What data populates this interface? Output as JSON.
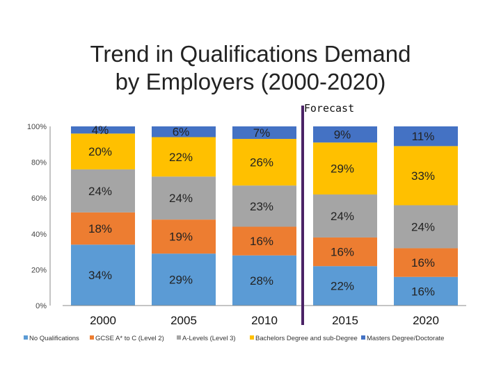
{
  "chart_data": {
    "type": "bar",
    "stacked": true,
    "title": [
      "Trend in Qualifications Demand",
      "by Employers (2000-2020)"
    ],
    "annotation": "Forecast",
    "categories": [
      "2000",
      "2005",
      "2010",
      "2015",
      "2020"
    ],
    "ylim": [
      0,
      100
    ],
    "y_ticks": [
      "0%",
      "20%",
      "40%",
      "60%",
      "80%",
      "100%"
    ],
    "legend_position": "bottom",
    "series": [
      {
        "name": "No Qualifications",
        "color": "#5B9BD5",
        "values": [
          34,
          29,
          28,
          22,
          16
        ],
        "labels": [
          "34%",
          "29%",
          "28%",
          "22%",
          "16%"
        ]
      },
      {
        "name": "GCSE A* to C (Level 2)",
        "color": "#ED7D31",
        "values": [
          18,
          19,
          16,
          16,
          16
        ],
        "labels": [
          "18%",
          "19%",
          "16%",
          "16%",
          "16%"
        ]
      },
      {
        "name": "A-Levels (Level 3)",
        "color": "#A5A5A5",
        "values": [
          24,
          24,
          23,
          24,
          24
        ],
        "labels": [
          "24%",
          "24%",
          "23%",
          "24%",
          "24%"
        ]
      },
      {
        "name": "Bachelors Degree and sub-Degree",
        "color": "#FFC000",
        "values": [
          20,
          22,
          26,
          29,
          33
        ],
        "labels": [
          "20%",
          "22%",
          "26%",
          "29%",
          "33%"
        ]
      },
      {
        "name": "Masters Degree/Doctorate",
        "color": "#4472C4",
        "values": [
          4,
          6,
          7,
          9,
          11
        ],
        "labels": [
          "4%",
          "6%",
          "7%",
          "9%",
          "11%"
        ]
      }
    ],
    "forecast_line_color": "#4B2366"
  }
}
